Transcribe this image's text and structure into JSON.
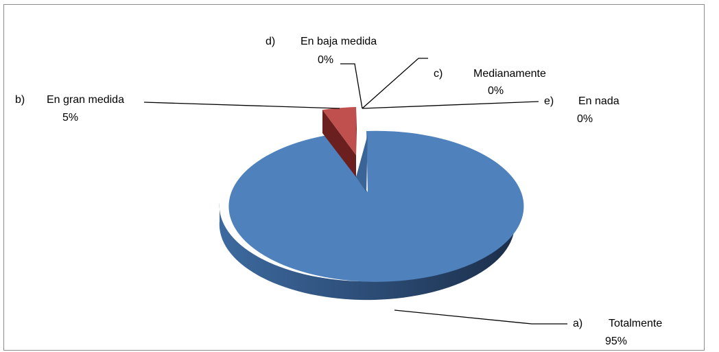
{
  "chart_data": {
    "type": "pie",
    "style": "3d-exploded",
    "title": "",
    "slices": [
      {
        "letter": "a)",
        "label": "Totalmente",
        "value": 95,
        "pct_text": "95%",
        "color": "#4f81bd"
      },
      {
        "letter": "b)",
        "label": "En gran medida",
        "value": 5,
        "pct_text": "5%",
        "color": "#c0504d"
      },
      {
        "letter": "c)",
        "label": "Medianamente",
        "value": 0,
        "pct_text": "0%",
        "color": "#9bbb59"
      },
      {
        "letter": "d)",
        "label": "En baja medida",
        "value": 0,
        "pct_text": "0%",
        "color": "#8064a2"
      },
      {
        "letter": "e)",
        "label": "En nada",
        "value": 0,
        "pct_text": "0%",
        "color": "#4bacc6"
      }
    ],
    "legend": "none"
  }
}
